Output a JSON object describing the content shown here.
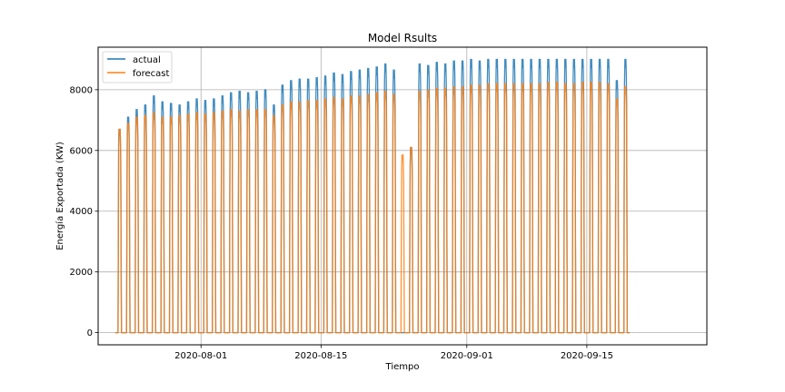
{
  "chart_data": {
    "type": "line",
    "title": "Model Rsults",
    "xlabel": "Tiempo",
    "ylabel": "Energía Exportada (KW)",
    "x_range": [
      "2020-07-20",
      "2020-09-29"
    ],
    "ylim": [
      -400,
      9400
    ],
    "grid": true,
    "legend_position": "top-left",
    "x_ticks": [
      "2020-08-01",
      "2020-08-15",
      "2020-09-01",
      "2020-09-15"
    ],
    "y_ticks": [
      0,
      2000,
      4000,
      6000,
      8000
    ],
    "colors": {
      "actual": "#1f77b4",
      "forecast": "#ff7f0e"
    },
    "series": [
      {
        "name": "actual",
        "start_date": "2020-07-22",
        "daily_peaks": [
          6700,
          7100,
          7350,
          7500,
          7800,
          7600,
          7550,
          7500,
          7600,
          7700,
          7650,
          7700,
          7800,
          7900,
          7950,
          7900,
          7950,
          8000,
          7500,
          8150,
          8300,
          8350,
          8350,
          8400,
          8450,
          8550,
          8500,
          8600,
          8650,
          8700,
          8750,
          8850,
          8650,
          0,
          6100,
          8850,
          8800,
          8900,
          8850,
          8950,
          8950,
          9000,
          8950,
          9000,
          9000,
          9000,
          9000,
          9000,
          9000,
          9000,
          9000,
          9000,
          9000,
          9000,
          9000,
          9000,
          9000,
          9000,
          8300,
          9000
        ]
      },
      {
        "name": "forecast",
        "start_date": "2020-07-22",
        "daily_peaks": [
          6700,
          6900,
          7100,
          7150,
          7250,
          7100,
          7100,
          7150,
          7200,
          7250,
          7200,
          7250,
          7300,
          7350,
          7300,
          7350,
          7350,
          7350,
          7150,
          7500,
          7600,
          7600,
          7650,
          7650,
          7700,
          7750,
          7700,
          7800,
          7800,
          7850,
          7900,
          7950,
          7850,
          5850,
          6100,
          7950,
          8000,
          8050,
          8050,
          8100,
          8100,
          8150,
          8150,
          8200,
          8200,
          8200,
          8200,
          8200,
          8200,
          8200,
          8250,
          8250,
          8200,
          8200,
          8250,
          8250,
          8250,
          8200,
          7700,
          8100
        ]
      }
    ]
  }
}
